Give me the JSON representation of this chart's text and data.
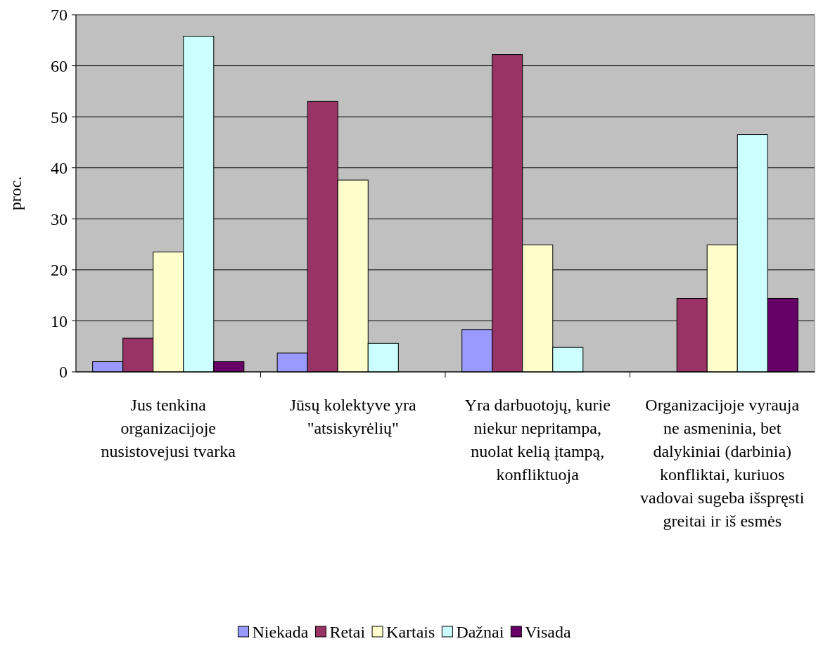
{
  "chart_data": {
    "type": "bar",
    "ylabel": "proc.",
    "categories": [
      "Jus tenkina organizacijoje nusistovejusi tvarka",
      "Jūsų kolektyve yra \"atsiskyrėlių\"",
      "Yra darbuotojų, kurie niekur nepritampa, nuolat kelią įtampą, konfliktuoja",
      "Organizacijoje vyrauja ne asmeninia, bet dalykiniai (darbinia) konfliktai, kuriuos vadovai sugeba išspręsti greitai ir iš esmės"
    ],
    "series": [
      {
        "name": "Niekada",
        "color": "#9999ff",
        "values": [
          2,
          3.7,
          8.3,
          0
        ]
      },
      {
        "name": "Retai",
        "color": "#993366",
        "values": [
          6.6,
          53,
          62.2,
          14.4
        ]
      },
      {
        "name": "Kartais",
        "color": "#ffffcc",
        "values": [
          23.5,
          37.6,
          24.9,
          24.9
        ]
      },
      {
        "name": "Dažnai",
        "color": "#ccffff",
        "values": [
          65.8,
          5.6,
          4.8,
          46.5
        ]
      },
      {
        "name": "Visada",
        "color": "#660066",
        "values": [
          2,
          0,
          0,
          14.4
        ]
      }
    ],
    "ylim": [
      0,
      70
    ],
    "yticks": [
      0,
      10,
      20,
      30,
      40,
      50,
      60,
      70
    ],
    "grid": "y",
    "legend": "bottom"
  }
}
